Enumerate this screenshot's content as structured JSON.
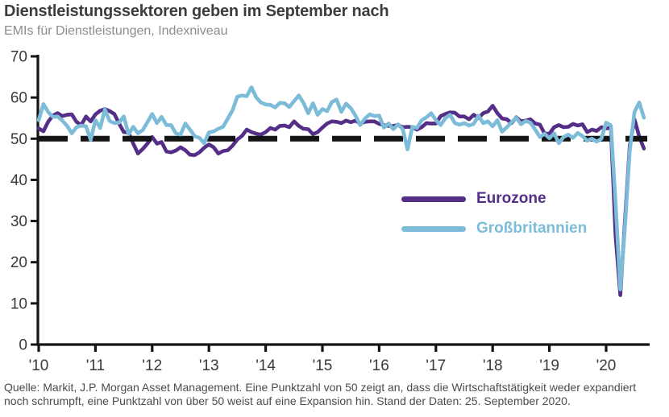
{
  "header": {
    "title": "Dienstleistungssektoren geben im September nach",
    "subtitle": "EMIs für Dienstleistungen, Indexniveau"
  },
  "chart_data": {
    "type": "line",
    "title": "Dienstleistungssektoren geben im September nach",
    "subtitle": "EMIs für Dienstleistungen, Indexniveau",
    "xlabel": "",
    "ylabel": "",
    "ylim": [
      0,
      70
    ],
    "yticks": [
      0,
      10,
      20,
      30,
      40,
      50,
      60,
      70
    ],
    "xtick_labels": [
      "'10",
      "'11",
      "'12",
      "'13",
      "'14",
      "'15",
      "'16",
      "'17",
      "'18",
      "'19",
      "'20"
    ],
    "x_start_year": 2010,
    "x_step": "monthly",
    "grid": false,
    "legend_position": "center-right",
    "reference_line": {
      "value": 50,
      "style": "dashed",
      "color": "#141414"
    },
    "axis_color": "#141414",
    "tick_label_color": "#3a3a3a",
    "series": [
      {
        "name": "Eurozone",
        "color": "#552e87",
        "values": [
          52.5,
          51.8,
          54.1,
          55.6,
          56.2,
          55.5,
          55.8,
          55.9,
          54.1,
          53.3,
          55.4,
          54.2,
          55.9,
          56.8,
          57.2,
          56.7,
          56.0,
          53.7,
          51.6,
          51.5,
          48.8,
          46.4,
          47.5,
          48.8,
          50.4,
          48.8,
          49.2,
          46.9,
          46.7,
          47.1,
          47.9,
          47.2,
          46.1,
          46.0,
          46.7,
          47.8,
          48.6,
          47.9,
          46.4,
          47.0,
          47.2,
          48.3,
          49.8,
          50.7,
          52.2,
          51.6,
          51.2,
          51.0,
          51.6,
          52.6,
          52.2,
          53.1,
          53.2,
          52.8,
          54.2,
          53.1,
          52.4,
          52.3,
          51.1,
          51.6,
          52.7,
          53.7,
          54.2,
          54.1,
          53.8,
          54.4,
          54.0,
          54.4,
          53.7,
          54.1,
          54.2,
          54.2,
          53.6,
          53.3,
          53.1,
          53.1,
          53.3,
          52.8,
          52.9,
          52.8,
          52.2,
          52.8,
          53.8,
          53.7,
          53.7,
          55.5,
          56.0,
          56.4,
          56.3,
          55.4,
          55.4,
          54.7,
          55.8,
          55.0,
          56.2,
          56.6,
          58.0,
          56.2,
          54.9,
          54.7,
          53.8,
          55.2,
          54.2,
          54.4,
          54.7,
          53.7,
          53.4,
          51.2,
          51.2,
          52.8,
          53.3,
          52.8,
          52.9,
          53.6,
          53.2,
          53.5,
          51.6,
          52.2,
          51.9,
          52.8,
          52.5,
          52.6,
          26.4,
          12.0,
          30.5,
          48.3,
          54.7,
          50.5,
          47.6
        ]
      },
      {
        "name": "Großbritannien",
        "color": "#7dbcd8",
        "values": [
          54.5,
          58.4,
          56.5,
          55.3,
          55.4,
          54.4,
          53.1,
          51.3,
          52.8,
          53.2,
          53.0,
          49.7,
          54.5,
          52.6,
          57.1,
          54.3,
          53.8,
          53.9,
          55.4,
          51.1,
          52.9,
          51.3,
          52.1,
          54.0,
          56.0,
          53.8,
          55.3,
          53.3,
          53.3,
          51.3,
          51.0,
          53.7,
          52.2,
          50.6,
          50.2,
          48.9,
          51.5,
          51.8,
          52.4,
          52.9,
          54.9,
          56.9,
          60.2,
          60.5,
          60.3,
          62.5,
          60.0,
          58.8,
          58.3,
          58.2,
          57.6,
          58.7,
          58.6,
          57.7,
          59.1,
          60.5,
          58.7,
          56.2,
          58.6,
          55.8,
          57.2,
          56.7,
          58.9,
          59.5,
          56.5,
          58.5,
          57.4,
          55.6,
          53.3,
          54.9,
          55.9,
          55.5,
          55.6,
          52.7,
          53.7,
          52.3,
          53.5,
          52.3,
          47.4,
          52.9,
          52.6,
          54.5,
          55.2,
          56.2,
          54.5,
          53.3,
          55.0,
          55.8,
          53.8,
          53.4,
          53.8,
          53.2,
          53.6,
          55.6,
          53.8,
          54.2,
          53.0,
          54.5,
          51.7,
          52.8,
          54.0,
          55.1,
          53.5,
          54.3,
          53.9,
          52.2,
          50.4,
          51.2,
          50.1,
          51.3,
          48.9,
          50.4,
          51.0,
          50.2,
          51.4,
          50.6,
          49.5,
          50.0,
          49.3,
          50.0,
          53.9,
          53.2,
          34.5,
          13.4,
          29.0,
          47.1,
          56.5,
          58.8,
          55.1
        ]
      }
    ]
  },
  "footer": {
    "lines": [
      "Quelle: Markit, J.P. Morgan Asset Management. Eine Punktzahl von 50 zeigt an, dass die Wirtschaftstätigkeit weder expandiert",
      "noch schrumpft, eine Punktzahl von über 50 weist auf eine Expansion hin. Stand der Daten: 25. September 2020."
    ]
  }
}
